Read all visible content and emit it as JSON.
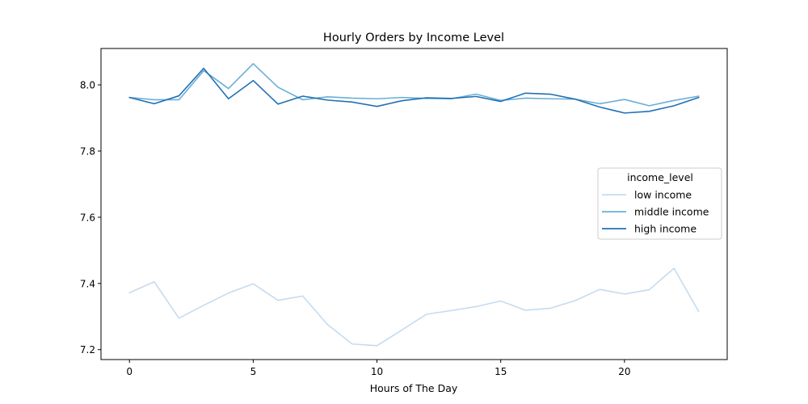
{
  "chart_data": {
    "type": "line",
    "title": "Hourly Orders by Income Level",
    "xlabel": "Hours of The Day",
    "ylabel": "",
    "xlim": [
      -1.15,
      24.15
    ],
    "ylim": [
      7.17,
      8.11
    ],
    "xticks": [
      0,
      5,
      10,
      15,
      20
    ],
    "yticks": [
      7.2,
      7.4,
      7.6,
      7.8,
      8.0
    ],
    "ytick_labels": [
      "7.2",
      "7.4",
      "7.6",
      "7.8",
      "8.0"
    ],
    "grid": false,
    "legend": {
      "title": "income_level",
      "placement": "center-right"
    },
    "x": [
      0,
      1,
      2,
      3,
      4,
      5,
      6,
      7,
      8,
      9,
      10,
      11,
      12,
      13,
      14,
      15,
      16,
      17,
      18,
      19,
      20,
      21,
      22,
      23
    ],
    "series": [
      {
        "name": "low income",
        "color": "#c6dbef",
        "values": [
          7.372,
          7.405,
          7.295,
          7.334,
          7.371,
          7.399,
          7.349,
          7.362,
          7.276,
          7.217,
          7.212,
          7.259,
          7.307,
          7.318,
          7.33,
          7.347,
          7.319,
          7.325,
          7.348,
          7.382,
          7.368,
          7.381,
          7.446,
          7.315
        ]
      },
      {
        "name": "middle income",
        "color": "#6baed6",
        "values": [
          7.962,
          7.955,
          7.955,
          8.043,
          7.989,
          8.064,
          7.993,
          7.955,
          7.964,
          7.96,
          7.958,
          7.962,
          7.959,
          7.958,
          7.972,
          7.953,
          7.96,
          7.958,
          7.957,
          7.943,
          7.956,
          7.937,
          7.953,
          7.966
        ]
      },
      {
        "name": "high income",
        "color": "#2171b5",
        "values": [
          7.962,
          7.943,
          7.967,
          8.05,
          7.958,
          8.013,
          7.942,
          7.966,
          7.954,
          7.948,
          7.935,
          7.952,
          7.961,
          7.959,
          7.965,
          7.95,
          7.975,
          7.972,
          7.957,
          7.933,
          7.915,
          7.92,
          7.937,
          7.962
        ]
      }
    ]
  }
}
